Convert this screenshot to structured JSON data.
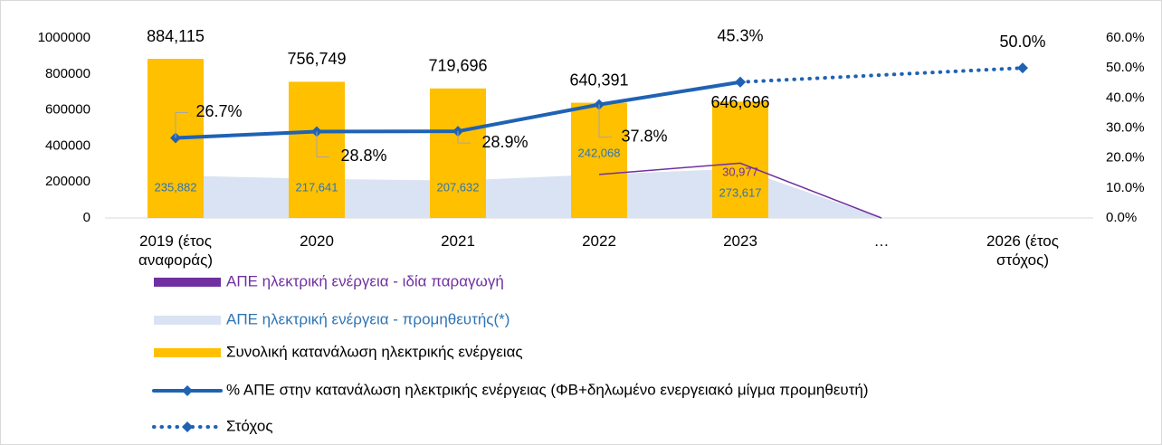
{
  "chart_data": {
    "type": "bar",
    "categories": [
      "2019 (έτος αναφοράς)",
      "2020",
      "2021",
      "2022",
      "2023",
      "…",
      "2026 (έτος στόχος)"
    ],
    "ylim": [
      0,
      1000000
    ],
    "yticks": [
      0,
      200000,
      400000,
      600000,
      800000,
      1000000
    ],
    "y2lim": [
      0,
      60
    ],
    "y2ticks": [
      {
        "value": 0,
        "label": "0.0%"
      },
      {
        "value": 10,
        "label": "10.0%"
      },
      {
        "value": 20,
        "label": "20.0%"
      },
      {
        "value": 30,
        "label": "30.0%"
      },
      {
        "value": 40,
        "label": "40.0%"
      },
      {
        "value": 50,
        "label": "50.0%"
      },
      {
        "value": 60,
        "label": "60.0%"
      }
    ],
    "series": [
      {
        "name": "ΑΠΕ ηλεκτρική ενέργεια - ιδία παραγωγή",
        "type": "stacked_line",
        "color": "#7030a0",
        "values": [
          null,
          null,
          null,
          0,
          30977,
          0,
          null
        ],
        "value_labels": [
          null,
          null,
          null,
          null,
          "30,977",
          null,
          null
        ]
      },
      {
        "name": "ΑΠΕ ηλεκτρική ενέργεια - προμηθευτής(*)",
        "type": "area",
        "color": "#dae3f3",
        "values": [
          235882,
          217641,
          207632,
          242068,
          273617,
          0,
          null
        ],
        "value_labels": [
          "235,882",
          "217,641",
          "207,632",
          "242,068",
          "273,617",
          null,
          null
        ]
      },
      {
        "name": "Συνολική κατανάλωση ηλεκτρικής ενέργειας",
        "type": "bar",
        "color": "#ffc000",
        "values": [
          884115,
          756749,
          719696,
          640391,
          646696,
          null,
          null
        ],
        "value_labels": [
          "884,115",
          "756,749",
          "719,696",
          "640,391",
          "646,696",
          null,
          null
        ]
      },
      {
        "name": "% ΑΠΕ στην κατανάλωση ηλεκτρικής ενέργειας (ΦΒ+δηλωμένο ενεργειακό μίγμα προμηθευτή)",
        "type": "line",
        "axis": "y2",
        "color": "#1f62b4",
        "values": [
          26.7,
          28.8,
          28.9,
          37.8,
          45.3,
          null,
          null
        ],
        "value_labels": [
          "26.7%",
          "28.8%",
          "28.9%",
          "37.8%",
          "45.3%",
          null,
          null
        ]
      },
      {
        "name": "Στόχος",
        "type": "dotted_line",
        "axis": "y2",
        "color": "#1f62b4",
        "span_gaps": true,
        "values": [
          null,
          null,
          null,
          null,
          45.3,
          null,
          50.0
        ],
        "value_labels": [
          null,
          null,
          null,
          null,
          null,
          null,
          "50.0%"
        ]
      }
    ]
  }
}
